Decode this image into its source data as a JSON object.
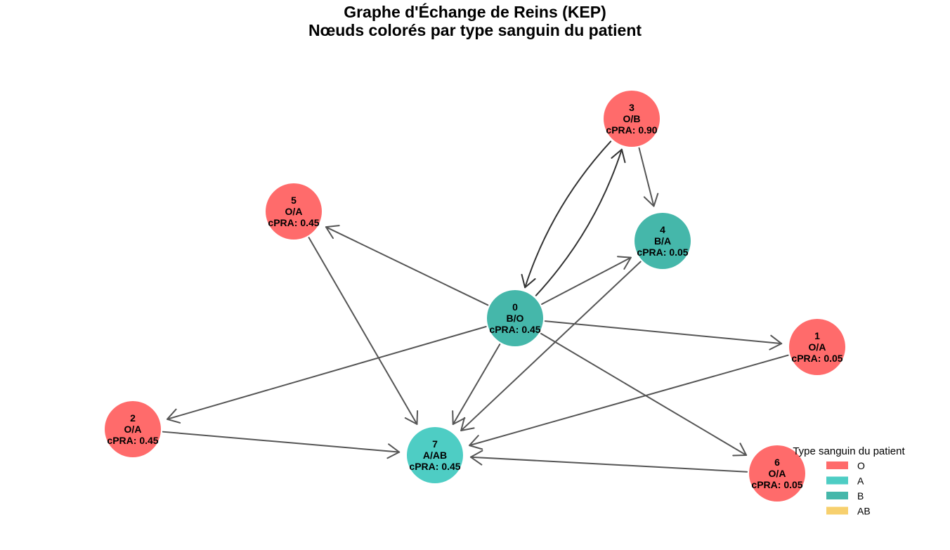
{
  "title": {
    "line1": "Graphe d'Échange de Reins (KEP)",
    "line2": "Nœuds colorés par type sanguin du patient"
  },
  "colors": {
    "O": "#ff6b6b",
    "A": "#4ecdc4",
    "B": "#45b7aa",
    "AB": "#f7d06e",
    "edge": "#555555",
    "edge_highlight": "#333333"
  },
  "nodes": [
    {
      "id": "0",
      "pair": "B/O",
      "cpra": "cPRA: 0.45",
      "patient_type": "B"
    },
    {
      "id": "1",
      "pair": "O/A",
      "cpra": "cPRA: 0.05",
      "patient_type": "O"
    },
    {
      "id": "2",
      "pair": "O/A",
      "cpra": "cPRA: 0.45",
      "patient_type": "O"
    },
    {
      "id": "3",
      "pair": "O/B",
      "cpra": "cPRA: 0.90",
      "patient_type": "O"
    },
    {
      "id": "4",
      "pair": "B/A",
      "cpra": "cPRA: 0.05",
      "patient_type": "B"
    },
    {
      "id": "5",
      "pair": "O/A",
      "cpra": "cPRA: 0.45",
      "patient_type": "O"
    },
    {
      "id": "6",
      "pair": "O/A",
      "cpra": "cPRA: 0.05",
      "patient_type": "O"
    },
    {
      "id": "7",
      "pair": "A/AB",
      "cpra": "cPRA: 0.45",
      "patient_type": "A"
    }
  ],
  "edges": [
    {
      "from": "0",
      "to": "5"
    },
    {
      "from": "0",
      "to": "4"
    },
    {
      "from": "0",
      "to": "3",
      "curved": true
    },
    {
      "from": "3",
      "to": "0",
      "curved": true
    },
    {
      "from": "0",
      "to": "1"
    },
    {
      "from": "0",
      "to": "2"
    },
    {
      "from": "0",
      "to": "7"
    },
    {
      "from": "0",
      "to": "6"
    },
    {
      "from": "3",
      "to": "4"
    },
    {
      "from": "4",
      "to": "7"
    },
    {
      "from": "5",
      "to": "7"
    },
    {
      "from": "1",
      "to": "7"
    },
    {
      "from": "2",
      "to": "7"
    },
    {
      "from": "6",
      "to": "7"
    }
  ],
  "legend": {
    "title": "Type sanguin du patient",
    "items": [
      {
        "label": "O",
        "color": "#ff6b6b"
      },
      {
        "label": "A",
        "color": "#4ecdc4"
      },
      {
        "label": "B",
        "color": "#45b7aa"
      },
      {
        "label": "AB",
        "color": "#f7d06e"
      }
    ]
  }
}
